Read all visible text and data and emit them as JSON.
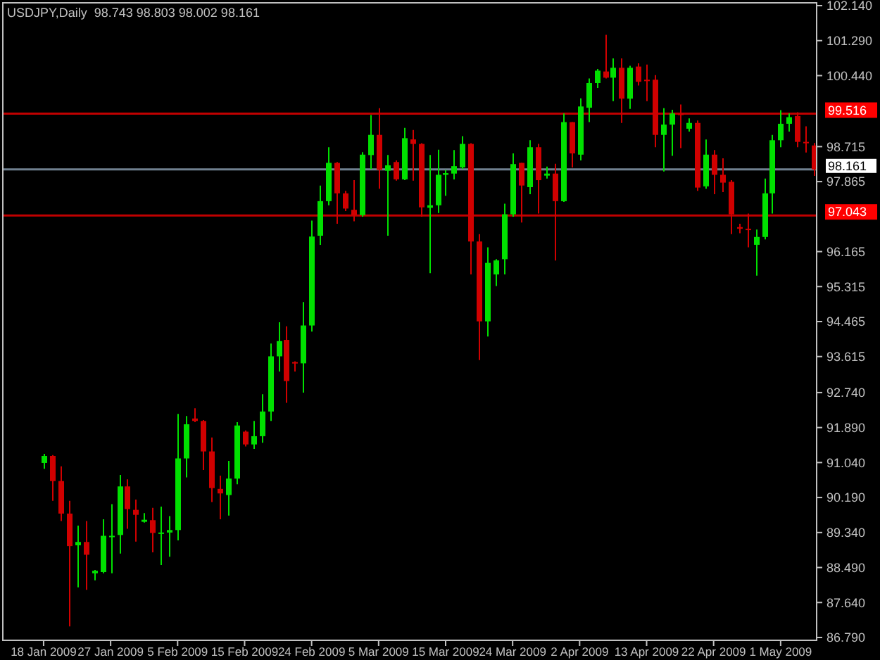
{
  "chart_data": {
    "type": "candlestick",
    "title": "USDJPY,Daily  98.743 98.803 98.002 98.161",
    "categories": [
      "18 Jan 2009",
      null,
      null,
      null,
      null,
      null,
      null,
      null,
      "27 Jan 2009",
      null,
      null,
      null,
      null,
      null,
      null,
      null,
      "5 Feb 2009",
      null,
      null,
      null,
      null,
      null,
      null,
      null,
      "15 Feb 2009",
      null,
      null,
      null,
      null,
      null,
      null,
      null,
      "24 Feb 2009",
      null,
      null,
      null,
      null,
      null,
      null,
      null,
      "5 Mar 2009",
      null,
      null,
      null,
      null,
      null,
      null,
      null,
      "15 Mar 2009",
      null,
      null,
      null,
      null,
      null,
      null,
      null,
      "24 Mar 2009",
      null,
      null,
      null,
      null,
      null,
      null,
      null,
      "2 Apr 2009",
      null,
      null,
      null,
      null,
      null,
      null,
      null,
      "13 Apr 2009",
      null,
      null,
      null,
      null,
      null,
      null,
      null,
      "22 Apr 2009",
      null,
      null,
      null,
      null,
      null,
      null,
      null,
      "1 May 2009",
      null,
      null,
      null,
      null
    ],
    "ohlc": [
      [
        91.03,
        91.25,
        90.89,
        91.2
      ],
      [
        91.2,
        91.22,
        90.11,
        90.59
      ],
      [
        90.59,
        90.95,
        89.62,
        89.8
      ],
      [
        89.8,
        90.11,
        87.06,
        89.01
      ],
      [
        89.03,
        89.51,
        88.01,
        89.11
      ],
      [
        89.11,
        89.62,
        87.95,
        88.8
      ],
      [
        88.35,
        88.43,
        88.18,
        88.41
      ],
      [
        88.38,
        89.66,
        88.35,
        89.26
      ],
      [
        89.23,
        90.03,
        88.35,
        89.26
      ],
      [
        89.28,
        90.74,
        88.83,
        90.46
      ],
      [
        90.46,
        90.63,
        89.43,
        89.91
      ],
      [
        89.89,
        90.14,
        89.12,
        89.77
      ],
      [
        89.6,
        89.81,
        89.58,
        89.65
      ],
      [
        89.64,
        89.94,
        88.86,
        89.33
      ],
      [
        89.32,
        89.97,
        88.55,
        89.34
      ],
      [
        89.34,
        89.74,
        88.75,
        89.4
      ],
      [
        89.4,
        92.22,
        89.15,
        91.14
      ],
      [
        91.14,
        92.17,
        90.68,
        91.97
      ],
      [
        92.11,
        92.36,
        92.02,
        92.05
      ],
      [
        92.05,
        92.07,
        90.86,
        91.31
      ],
      [
        91.31,
        91.65,
        90.08,
        90.42
      ],
      [
        90.4,
        90.72,
        89.66,
        90.29
      ],
      [
        90.25,
        91.08,
        89.75,
        90.65
      ],
      [
        90.65,
        92.02,
        90.51,
        91.94
      ],
      [
        91.79,
        91.82,
        91.43,
        91.48
      ],
      [
        91.48,
        92.05,
        91.37,
        91.68
      ],
      [
        91.68,
        92.7,
        91.52,
        92.28
      ],
      [
        92.28,
        93.93,
        92.05,
        93.62
      ],
      [
        93.62,
        94.45,
        93.25,
        93.99
      ],
      [
        94.02,
        94.35,
        92.49,
        93.02
      ],
      [
        93.48,
        93.5,
        93.25,
        93.45
      ],
      [
        93.45,
        94.94,
        92.74,
        94.37
      ],
      [
        94.37,
        96.92,
        94.22,
        96.53
      ],
      [
        96.55,
        97.77,
        96.33,
        97.39
      ],
      [
        97.39,
        98.7,
        97.29,
        98.32
      ],
      [
        98.32,
        98.34,
        96.84,
        97.58
      ],
      [
        97.58,
        97.64,
        97.15,
        97.21
      ],
      [
        97.18,
        97.9,
        96.9,
        97.05
      ],
      [
        97.05,
        98.58,
        97.01,
        98.52
      ],
      [
        98.51,
        99.48,
        98.17,
        99.0
      ],
      [
        99.0,
        99.65,
        97.69,
        98.15
      ],
      [
        98.13,
        98.51,
        96.55,
        98.26
      ],
      [
        98.34,
        98.38,
        97.89,
        97.92
      ],
      [
        97.92,
        99.17,
        97.9,
        98.92
      ],
      [
        98.89,
        99.12,
        97.89,
        98.78
      ],
      [
        98.78,
        98.8,
        97.01,
        97.24
      ],
      [
        97.23,
        98.51,
        95.64,
        97.29
      ],
      [
        97.29,
        98.64,
        97.1,
        98.03
      ],
      [
        98.03,
        98.15,
        97.52,
        98.07
      ],
      [
        98.06,
        98.63,
        97.92,
        98.24
      ],
      [
        98.21,
        98.97,
        98.17,
        98.78
      ],
      [
        98.78,
        98.8,
        95.61,
        96.41
      ],
      [
        96.41,
        96.59,
        93.53,
        94.47
      ],
      [
        94.47,
        96.27,
        94.1,
        95.89
      ],
      [
        95.61,
        95.98,
        95.33,
        95.95
      ],
      [
        95.98,
        97.33,
        95.61,
        97.07
      ],
      [
        97.07,
        98.55,
        97.01,
        98.29
      ],
      [
        98.32,
        98.32,
        96.87,
        97.77
      ],
      [
        97.73,
        98.87,
        97.56,
        98.7
      ],
      [
        98.7,
        98.78,
        97.09,
        97.9
      ],
      [
        98.01,
        98.23,
        97.94,
        98.06
      ],
      [
        98.06,
        98.3,
        95.95,
        97.39
      ],
      [
        97.39,
        99.52,
        97.37,
        99.31
      ],
      [
        99.31,
        99.31,
        98.21,
        98.55
      ],
      [
        98.52,
        99.89,
        98.38,
        99.69
      ],
      [
        99.66,
        100.37,
        99.31,
        100.26
      ],
      [
        100.26,
        100.6,
        100.14,
        100.56
      ],
      [
        100.54,
        101.43,
        100.37,
        100.39
      ],
      [
        100.39,
        100.86,
        99.82,
        100.63
      ],
      [
        100.63,
        100.86,
        99.29,
        99.88
      ],
      [
        99.88,
        100.68,
        99.63,
        100.63
      ],
      [
        100.66,
        100.74,
        100.2,
        100.29
      ],
      [
        100.34,
        100.71,
        99.82,
        100.31
      ],
      [
        100.34,
        100.45,
        98.7,
        99.0
      ],
      [
        99.0,
        99.65,
        98.11,
        99.25
      ],
      [
        99.25,
        99.61,
        98.49,
        99.52
      ],
      [
        99.52,
        99.74,
        98.68,
        99.48
      ],
      [
        99.15,
        99.4,
        99.08,
        99.29
      ],
      [
        99.29,
        99.35,
        97.64,
        97.72
      ],
      [
        97.75,
        98.89,
        97.69,
        98.52
      ],
      [
        98.52,
        98.63,
        97.56,
        98.03
      ],
      [
        98.03,
        98.43,
        97.61,
        97.84
      ],
      [
        97.86,
        97.9,
        96.59,
        97.07
      ],
      [
        96.76,
        96.84,
        96.61,
        96.72
      ],
      [
        96.72,
        97.09,
        96.27,
        96.7
      ],
      [
        96.33,
        96.7,
        95.58,
        96.52
      ],
      [
        96.52,
        97.94,
        96.46,
        97.58
      ],
      [
        97.58,
        99.0,
        97.09,
        98.87
      ],
      [
        98.87,
        99.6,
        98.7,
        99.27
      ],
      [
        99.27,
        99.52,
        99.08,
        99.43
      ],
      [
        99.46,
        99.55,
        98.7,
        98.83
      ],
      [
        98.83,
        99.21,
        98.57,
        98.81
      ],
      [
        98.743,
        98.803,
        98.002,
        98.161
      ]
    ],
    "colors": [
      "#00e000",
      "#d00000",
      "#d00000",
      "#d00000",
      "#00e000",
      "#d00000",
      "#00e000",
      "#00e000",
      "#00e000",
      "#00e000",
      "#d00000",
      "#d00000",
      "#00e000",
      "#d00000",
      "#00e000",
      "#00e000",
      "#00e000",
      "#00e000",
      "#d00000",
      "#d00000",
      "#d00000",
      "#d00000",
      "#00e000",
      "#00e000",
      "#d00000",
      "#00e000",
      "#00e000",
      "#00e000",
      "#00e000",
      "#d00000",
      "#d00000",
      "#00e000",
      "#00e000",
      "#00e000",
      "#00e000",
      "#d00000",
      "#d00000",
      "#d00000",
      "#00e000",
      "#00e000",
      "#d00000",
      "#00e000",
      "#d00000",
      "#00e000",
      "#d00000",
      "#d00000",
      "#00e000",
      "#00e000",
      "#00e000",
      "#00e000",
      "#00e000",
      "#d00000",
      "#d00000",
      "#00e000",
      "#00e000",
      "#00e000",
      "#00e000",
      "#d00000",
      "#00e000",
      "#d00000",
      "#00e000",
      "#d00000",
      "#00e000",
      "#d00000",
      "#00e000",
      "#00e000",
      "#00e000",
      "#d00000",
      "#00e000",
      "#d00000",
      "#00e000",
      "#d00000",
      "#d00000",
      "#d00000",
      "#00e000",
      "#00e000",
      "#d00000",
      "#00e000",
      "#d00000",
      "#00e000",
      "#d00000",
      "#d00000",
      "#d00000",
      "#d00000",
      "#d00000",
      "#00e000",
      "#00e000",
      "#00e000",
      "#00e000",
      "#00e000",
      "#d00000",
      "#d00000",
      "#d00000"
    ],
    "ylim": [
      86.79,
      102.14
    ],
    "yticks": [
      {
        "value": 102.14,
        "label": "102.140"
      },
      {
        "value": 101.29,
        "label": "101.290"
      },
      {
        "value": 100.44,
        "label": "100.440"
      },
      {
        "value": 98.715,
        "label": "98.715"
      },
      {
        "value": 97.865,
        "label": "97.865"
      },
      {
        "value": 96.165,
        "label": "96.165"
      },
      {
        "value": 95.315,
        "label": "95.315"
      },
      {
        "value": 94.465,
        "label": "94.465"
      },
      {
        "value": 93.615,
        "label": "93.615"
      },
      {
        "value": 92.74,
        "label": "92.740"
      },
      {
        "value": 91.89,
        "label": "91.890"
      },
      {
        "value": 91.04,
        "label": "91.040"
      },
      {
        "value": 90.19,
        "label": "90.190"
      },
      {
        "value": 89.34,
        "label": "89.340"
      },
      {
        "value": 88.49,
        "label": "88.490"
      },
      {
        "value": 87.64,
        "label": "87.640"
      },
      {
        "value": 86.79,
        "label": "86.790"
      }
    ],
    "ref_lines": [
      {
        "axis": "y",
        "value": 99.516,
        "label": "99.516",
        "color": "#c00000"
      },
      {
        "axis": "y",
        "value": 98.161,
        "label": "98.161",
        "color": "#708090"
      },
      {
        "axis": "y",
        "value": 97.043,
        "label": "97.043",
        "color": "#c00000"
      }
    ],
    "grid": false
  }
}
